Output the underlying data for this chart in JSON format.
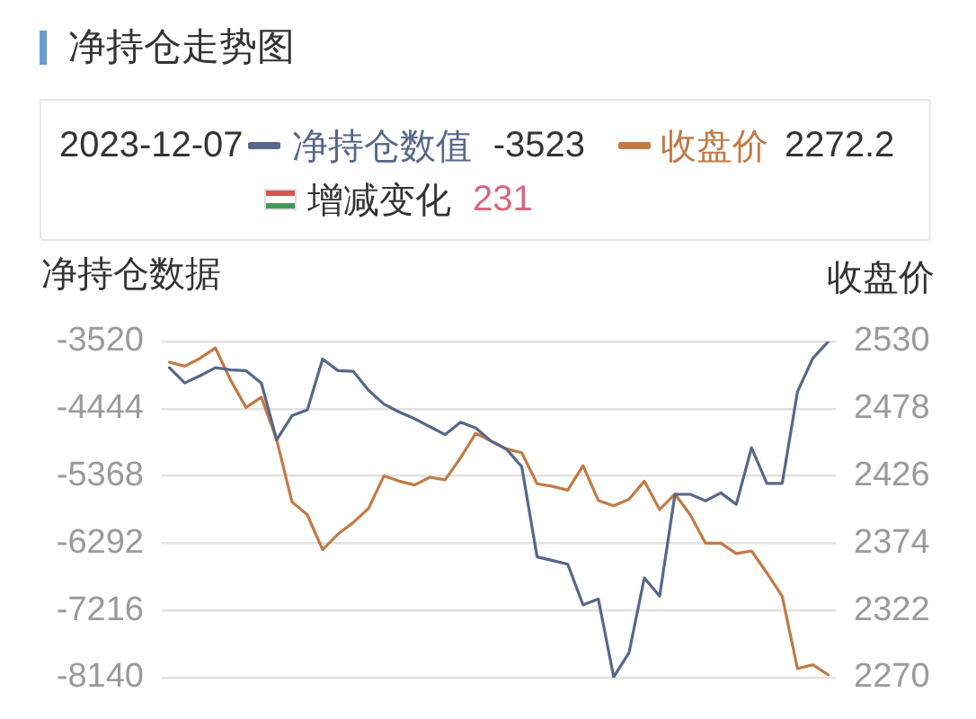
{
  "chart_data": {
    "type": "line",
    "title": "净持仓走势图",
    "ylabel": "净持仓数据",
    "y2label": "收盘价",
    "categories": [
      null,
      null,
      null,
      null,
      null,
      null,
      null,
      null,
      null,
      null,
      null,
      null,
      null,
      null,
      null,
      null,
      null,
      null,
      null,
      null,
      null,
      null,
      null,
      null,
      null,
      null,
      null,
      null,
      null,
      null,
      null,
      null,
      null,
      null,
      null,
      null,
      null,
      null,
      null,
      null,
      null,
      null,
      null,
      null
    ],
    "series": [
      {
        "name": "净持仓数值",
        "color": "#56678a",
        "values": [
          -3880,
          -4090,
          -3990,
          -3880,
          -3910,
          -3920,
          -4090,
          -4870,
          -4540,
          -4460,
          -3760,
          -3920,
          -3930,
          -4190,
          -4380,
          -4490,
          -4580,
          -4690,
          -4800,
          -4630,
          -4710,
          -4890,
          -5000,
          -5240,
          -6480,
          -6530,
          -6580,
          -7140,
          -7060,
          -8130,
          -7800,
          -6770,
          -7020,
          -5620,
          -5620,
          -5710,
          -5600,
          -5760,
          -4980,
          -5470,
          -5470,
          -4210,
          -3750,
          -3523
        ]
      },
      {
        "name": "收盘价",
        "color": "#c27a45",
        "axis": "y2",
        "values": [
          2514,
          2511,
          2517,
          2525,
          2500,
          2479,
          2487,
          2454,
          2406,
          2396,
          2369,
          2381,
          2390,
          2401,
          2426,
          2422,
          2419,
          2425,
          2423,
          2440,
          2459,
          2453,
          2447,
          2444,
          2420,
          2418,
          2415,
          2434,
          2407,
          2403,
          2408,
          2422,
          2400,
          2412,
          2396,
          2374,
          2374,
          2366,
          2368,
          2351,
          2333,
          2277,
          2280,
          2272.2
        ]
      }
    ],
    "ylim": [
      -8140,
      -3520
    ],
    "yticks": [
      -8140,
      -7216,
      -6292,
      -5368,
      -4444,
      -3520
    ],
    "y2lim": [
      2270,
      2530
    ],
    "y2ticks": [
      2270,
      2322,
      2374,
      2426,
      2478,
      2530
    ],
    "grid": "y",
    "legend": "top",
    "annotations": [
      "2023-12-07",
      "-3523",
      "2272.2",
      "增减变化",
      "231"
    ]
  }
}
